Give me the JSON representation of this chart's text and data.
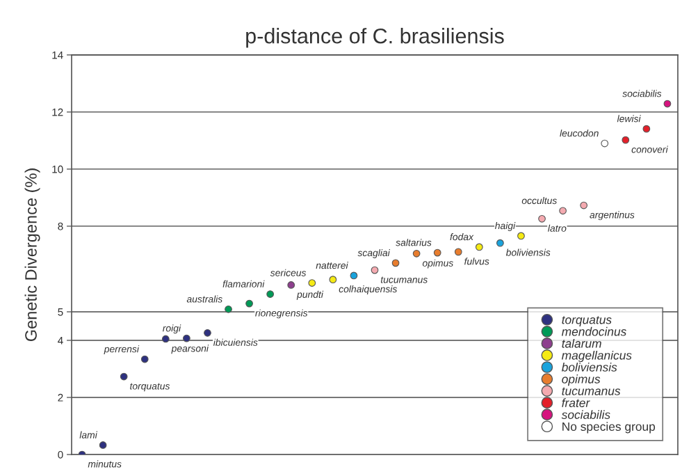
{
  "chart_data": {
    "type": "scatter",
    "title": "p-distance of C. brasiliensis",
    "ylabel": "Genetic Divergence (%)",
    "categories": [
      null,
      null,
      null,
      null,
      null,
      null,
      null,
      null,
      null,
      null,
      null,
      null,
      null,
      null,
      null,
      null,
      null,
      null,
      null,
      null,
      null,
      null,
      null,
      null,
      null,
      null,
      null,
      null,
      null
    ],
    "series": [
      {
        "name": "torquatus",
        "color": "#2e3180",
        "values": [
          0.0,
          0.33,
          2.73,
          3.34,
          4.05,
          4.07,
          4.26,
          null,
          null,
          null,
          null,
          null,
          null,
          null,
          null,
          null,
          null,
          null,
          null,
          null,
          null,
          null,
          null,
          null,
          null,
          null,
          null,
          null,
          null
        ]
      },
      {
        "name": "mendocinus",
        "color": "#009a57",
        "values": [
          null,
          null,
          null,
          null,
          null,
          null,
          null,
          5.09,
          5.29,
          5.62,
          null,
          null,
          null,
          null,
          null,
          null,
          null,
          null,
          null,
          null,
          null,
          null,
          null,
          null,
          null,
          null,
          null,
          null,
          null
        ]
      },
      {
        "name": "talarum",
        "color": "#8e3f8e",
        "values": [
          null,
          null,
          null,
          null,
          null,
          null,
          null,
          null,
          null,
          null,
          5.94,
          null,
          null,
          null,
          null,
          null,
          null,
          null,
          null,
          null,
          null,
          null,
          null,
          null,
          null,
          null,
          null,
          null,
          null
        ]
      },
      {
        "name": "magellanicus",
        "color": "#f5ea14",
        "values": [
          null,
          null,
          null,
          null,
          null,
          null,
          null,
          null,
          null,
          null,
          null,
          6.01,
          6.13,
          null,
          null,
          null,
          null,
          null,
          null,
          7.27,
          null,
          7.66,
          null,
          null,
          null,
          null,
          null,
          null,
          null
        ]
      },
      {
        "name": "boliviensis",
        "color": "#1aa3dc",
        "values": [
          null,
          null,
          null,
          null,
          null,
          null,
          null,
          null,
          null,
          null,
          null,
          null,
          null,
          6.27,
          null,
          null,
          null,
          null,
          null,
          null,
          7.41,
          null,
          null,
          null,
          null,
          null,
          null,
          null,
          null
        ]
      },
      {
        "name": "opimus",
        "color": "#e87d2e",
        "values": [
          null,
          null,
          null,
          null,
          null,
          null,
          null,
          null,
          null,
          null,
          null,
          null,
          null,
          null,
          null,
          6.71,
          7.04,
          7.07,
          7.1,
          null,
          null,
          null,
          null,
          null,
          null,
          null,
          null,
          null,
          null
        ]
      },
      {
        "name": "tucumanus",
        "color": "#f4aab0",
        "values": [
          null,
          null,
          null,
          null,
          null,
          null,
          null,
          null,
          null,
          null,
          null,
          null,
          null,
          null,
          6.46,
          null,
          null,
          null,
          null,
          null,
          null,
          null,
          8.26,
          8.54,
          8.73,
          null,
          null,
          null,
          null
        ]
      },
      {
        "name": "frater",
        "color": "#e3202a",
        "values": [
          null,
          null,
          null,
          null,
          null,
          null,
          null,
          null,
          null,
          null,
          null,
          null,
          null,
          null,
          null,
          null,
          null,
          null,
          null,
          null,
          null,
          null,
          null,
          null,
          null,
          null,
          11.02,
          11.41,
          null
        ]
      },
      {
        "name": "sociabilis",
        "color": "#d6147f",
        "values": [
          null,
          null,
          null,
          null,
          null,
          null,
          null,
          null,
          null,
          null,
          null,
          null,
          null,
          null,
          null,
          null,
          null,
          null,
          null,
          null,
          null,
          null,
          null,
          null,
          null,
          null,
          null,
          null,
          12.29
        ]
      },
      {
        "name": "No species group",
        "color": "#ffffff",
        "values": [
          null,
          null,
          null,
          null,
          null,
          null,
          null,
          null,
          null,
          null,
          null,
          null,
          null,
          null,
          null,
          null,
          null,
          null,
          null,
          null,
          null,
          null,
          null,
          null,
          null,
          10.9,
          null,
          null,
          null
        ]
      }
    ],
    "annotations": [
      "minutus",
      "lami",
      "torquatus",
      "perrensi",
      "pearsoni",
      "roigi",
      "ibicuiensis",
      "australis",
      "rionegrensis",
      "flamarioni",
      "pundti",
      "sericeus",
      "colhaiquensis",
      "natterei",
      "tucumanus",
      "scagliai",
      "opimus",
      "saltarius",
      "fulvus",
      "fodax",
      "boliviensis",
      "haigi",
      "latro",
      "occultus",
      "argentinus",
      "leucodon",
      "conoveri",
      "lewisi",
      "sociabilis"
    ],
    "ylim": [
      0,
      14
    ],
    "yticks": [
      0,
      2,
      4,
      5,
      8,
      10,
      12,
      14
    ],
    "grid": "y",
    "legend": "bottom right",
    "marker": "circle",
    "tick_labels": "y"
  }
}
